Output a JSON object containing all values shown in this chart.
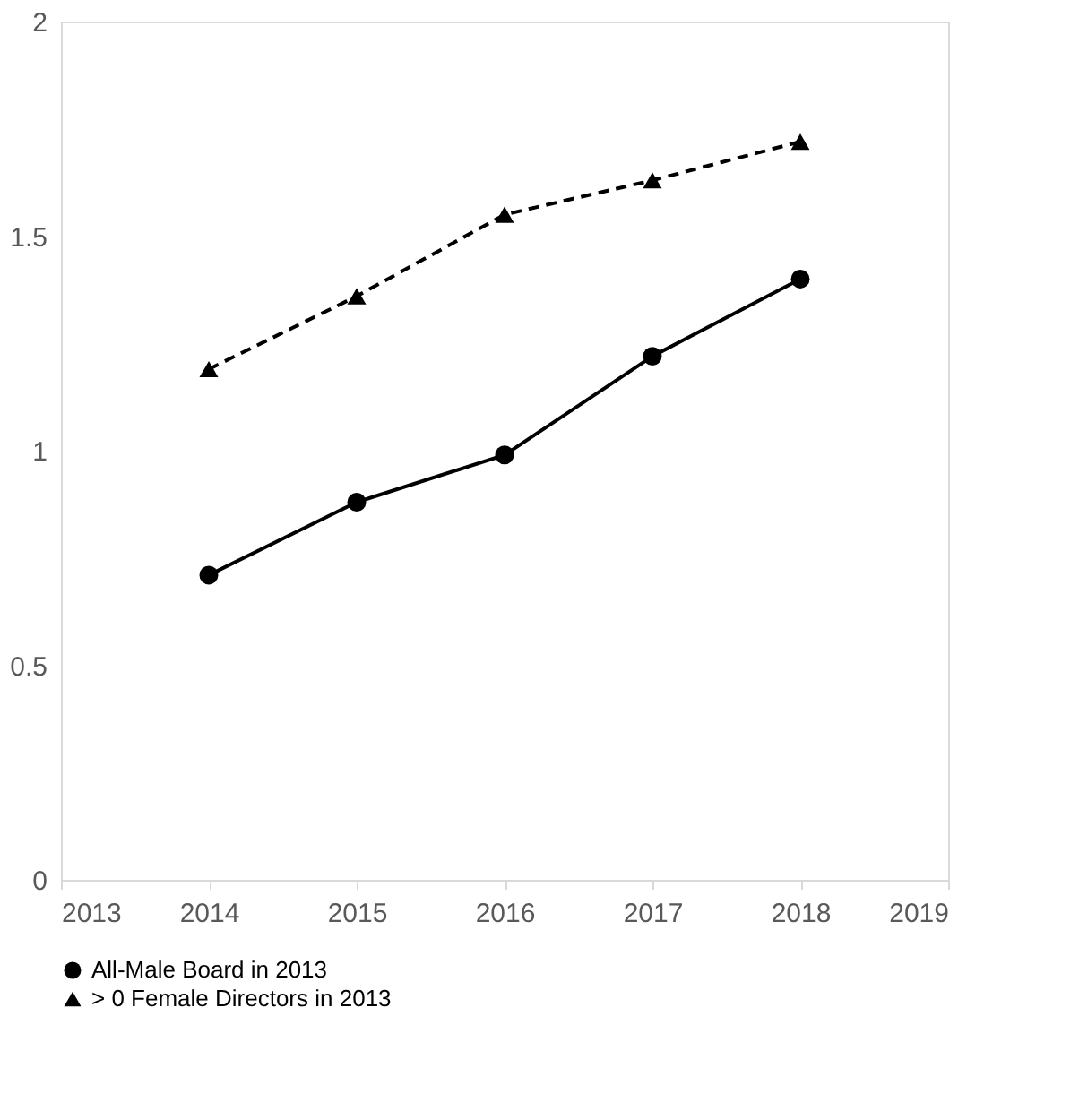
{
  "chart_data": {
    "type": "line",
    "x": [
      2014,
      2015,
      2016,
      2017,
      2018
    ],
    "series": [
      {
        "name": "All-Male Board in 2013",
        "color": "#000000",
        "marker": "circle",
        "line_style": "solid",
        "values": [
          0.71,
          0.88,
          0.99,
          1.22,
          1.4
        ]
      },
      {
        "name": "> 0 Female Directors in 2013",
        "color": "#000000",
        "marker": "triangle",
        "line_style": "dashed",
        "values": [
          1.19,
          1.36,
          1.55,
          1.63,
          1.72
        ]
      }
    ],
    "xlim": [
      2013,
      2019
    ],
    "xticks": [
      2013,
      2014,
      2015,
      2016,
      2017,
      2018,
      2019
    ],
    "ylim": [
      0,
      2
    ],
    "yticks": [
      0,
      0.5,
      1,
      1.5,
      2
    ],
    "grid": false,
    "legend": "bottom"
  }
}
